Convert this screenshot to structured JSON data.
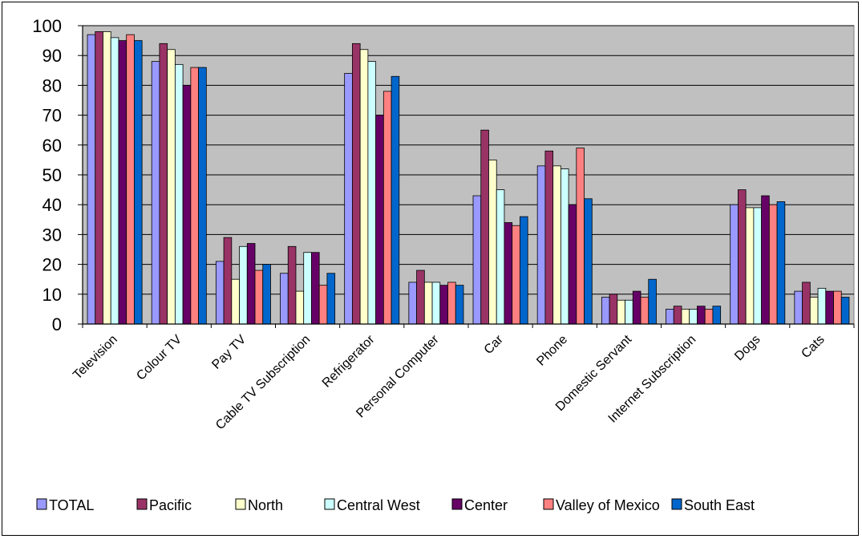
{
  "chart_data": {
    "type": "bar",
    "title": "",
    "xlabel": "",
    "ylabel": "",
    "ylim": [
      0,
      100
    ],
    "yticks": [
      0,
      10,
      20,
      30,
      40,
      50,
      60,
      70,
      80,
      90,
      100
    ],
    "grid": true,
    "legend": "bottom",
    "plot_background": "#c0c0c0",
    "categories": [
      "Television",
      "Colour TV",
      "Pay TV",
      "Cable TV Subscription",
      "Refrigerator",
      "Personal Computer",
      "Car",
      "Phone",
      "Domestic Servant",
      "Internet Subscription",
      "Dogs",
      "Cats"
    ],
    "series": [
      {
        "name": "TOTAL",
        "color": "#9999ff",
        "values": [
          97,
          88,
          21,
          17,
          84,
          14,
          43,
          53,
          9,
          5,
          40,
          11
        ]
      },
      {
        "name": "Pacific",
        "color": "#993366",
        "values": [
          98,
          94,
          29,
          26,
          94,
          18,
          65,
          58,
          10,
          6,
          45,
          14
        ]
      },
      {
        "name": "North",
        "color": "#ffffcc",
        "values": [
          98,
          92,
          15,
          11,
          92,
          14,
          55,
          53,
          8,
          5,
          39,
          9
        ]
      },
      {
        "name": "Central West",
        "color": "#ccffff",
        "values": [
          96,
          87,
          26,
          24,
          88,
          14,
          45,
          52,
          8,
          5,
          39,
          12
        ]
      },
      {
        "name": "Center",
        "color": "#660066",
        "values": [
          95,
          80,
          27,
          24,
          70,
          13,
          34,
          40,
          11,
          6,
          43,
          11
        ]
      },
      {
        "name": "Valley of Mexico",
        "color": "#ff8080",
        "values": [
          97,
          86,
          18,
          13,
          78,
          14,
          33,
          59,
          9,
          5,
          40,
          11
        ]
      },
      {
        "name": "South East",
        "color": "#0066cc",
        "values": [
          95,
          86,
          20,
          17,
          83,
          13,
          36,
          42,
          15,
          6,
          41,
          9
        ]
      }
    ]
  }
}
